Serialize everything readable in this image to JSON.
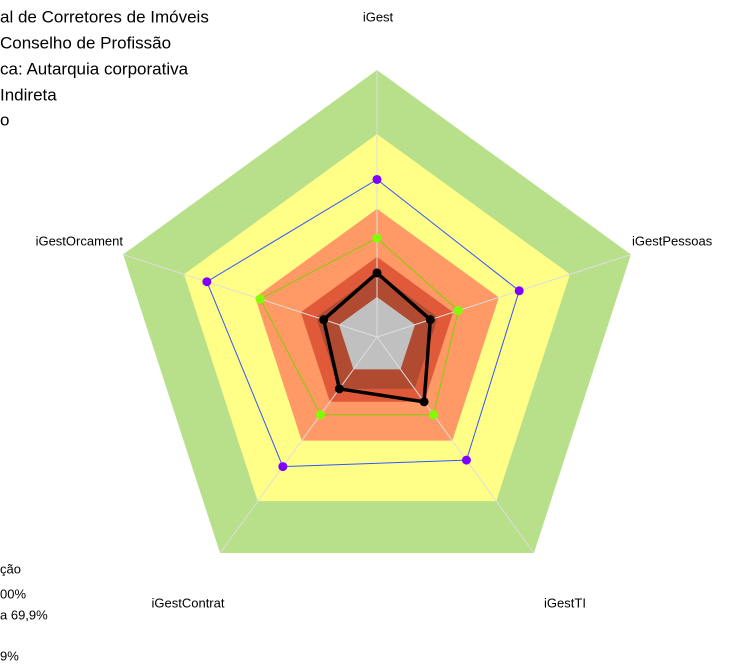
{
  "chart_data": {
    "type": "radar",
    "annotations": [
      "al de Corretores de Imóveis",
      "Conselho de Profissão",
      "ca: Autarquia corporativa",
      "Indireta",
      "o"
    ],
    "footnotes": [
      "ção",
      "00%",
      "a 69,9%",
      "9%"
    ],
    "categories": [
      "iGest",
      "iGestPessoas",
      "iGestTI",
      "iGestContrat",
      "iGestOrcament"
    ],
    "ylim": [
      0,
      100
    ],
    "bands": [
      {
        "value": 100,
        "color": "#b8e08a"
      },
      {
        "value": 76,
        "color": "#ffff88"
      },
      {
        "value": 48,
        "color": "#ff9966"
      },
      {
        "value": 30,
        "color": "#e05a3a"
      },
      {
        "value": 24,
        "color": "#b04a30"
      },
      {
        "value": 15,
        "color": "#c0c0c0"
      }
    ],
    "series": [
      {
        "color": "#3355ff",
        "marker_color": "#8000ff",
        "line_width": 1,
        "values": [
          59,
          56,
          57,
          60,
          67
        ]
      },
      {
        "color": "#88cc00",
        "marker_color": "#80ff00",
        "line_width": 1,
        "values": [
          37,
          32,
          36,
          36,
          46
        ]
      },
      {
        "color": "#000000",
        "marker_color": "#000000",
        "line_width": 3.5,
        "values": [
          24,
          21,
          30,
          24,
          21
        ]
      }
    ]
  }
}
